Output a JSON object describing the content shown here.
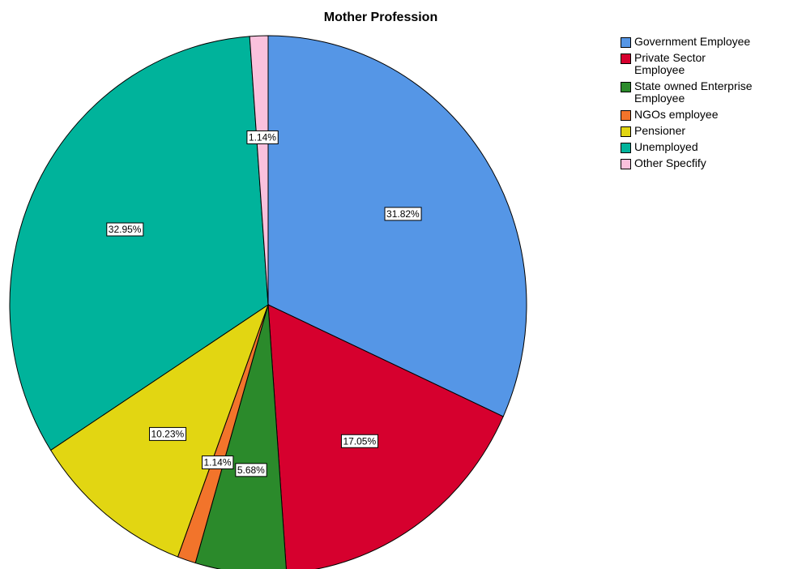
{
  "chart_data": {
    "type": "pie",
    "title": "Mother Profession",
    "categories": [
      "Government Employee",
      "Private Sector Employee",
      "State owned Enterprise Employee",
      "NGOs employee",
      "Pensioner",
      "Unemployed",
      "Other Specfify"
    ],
    "values": [
      31.82,
      17.05,
      5.68,
      1.14,
      10.23,
      32.95,
      1.14
    ],
    "value_labels": [
      "31.82%",
      "17.05%",
      "5.68%",
      "1.14%",
      "10.23%",
      "32.95%",
      "1.14%"
    ],
    "colors": [
      "#5596e6",
      "#d6002e",
      "#2b8a2b",
      "#f2742b",
      "#e2d612",
      "#00b39b",
      "#fac1dd"
    ],
    "legend": "top-right"
  }
}
